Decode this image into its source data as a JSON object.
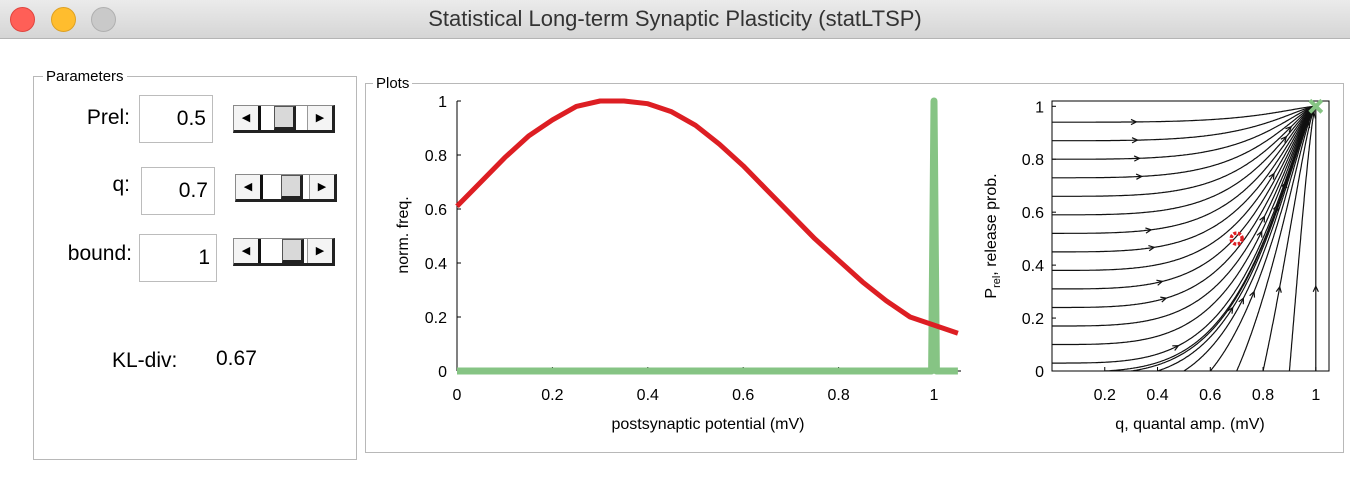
{
  "window": {
    "title": "Statistical Long-term Synaptic Plasticity (statLTSP)"
  },
  "parameters": {
    "title": "Parameters",
    "rows": [
      {
        "label": "Prel:",
        "value": "0.5",
        "level": 0.5
      },
      {
        "label": "q:",
        "value": "0.7",
        "level": 0.7
      },
      {
        "label": "bound:",
        "value": "1",
        "level": 0.8
      }
    ],
    "kl_label": "KL-div:",
    "kl_value": "0.67"
  },
  "plots": {
    "title": "Plots"
  },
  "colors": {
    "red_curve": "#dd1e23",
    "green_curve": "#86c484",
    "fixed_point": "#dd1e23",
    "target_marker": "#86c484"
  },
  "chart_data": [
    {
      "type": "line",
      "xlabel": "postsynaptic potential (mV)",
      "ylabel": "norm. freq.",
      "xlim": [
        0,
        1.05
      ],
      "ylim": [
        0,
        1
      ],
      "xticks": [
        "0",
        "0.2",
        "0.4",
        "0.6",
        "0.8",
        "1"
      ],
      "yticks": [
        "0",
        "0.2",
        "0.4",
        "0.6",
        "0.8",
        "1"
      ],
      "series": [
        {
          "color": "#dd1e23",
          "x": [
            0,
            0.05,
            0.1,
            0.15,
            0.2,
            0.25,
            0.3,
            0.35,
            0.4,
            0.45,
            0.5,
            0.55,
            0.6,
            0.65,
            0.7,
            0.75,
            0.8,
            0.85,
            0.9,
            0.95,
            1.0,
            1.05
          ],
          "y": [
            0.61,
            0.7,
            0.79,
            0.87,
            0.93,
            0.98,
            1.0,
            1.0,
            0.99,
            0.96,
            0.91,
            0.84,
            0.76,
            0.67,
            0.58,
            0.49,
            0.41,
            0.33,
            0.26,
            0.2,
            0.17,
            0.14
          ]
        },
        {
          "color": "#86c484",
          "x": [
            0,
            0.995,
            1.0,
            1.005,
            1.05
          ],
          "y": [
            0,
            0,
            1,
            0,
            0
          ]
        }
      ]
    },
    {
      "type": "scatter",
      "subtype": "phase-portrait",
      "xlabel": "q, quantal amp. (mV)",
      "ylabel": "P_rel, release prob.",
      "ylabel_main": "P",
      "ylabel_sub": "rel",
      "ylabel_rest": ", release prob.",
      "xlim": [
        0,
        1.05
      ],
      "ylim": [
        0,
        1.02
      ],
      "xticks": [
        "0.2",
        "0.4",
        "0.6",
        "0.8",
        "1"
      ],
      "yticks": [
        "0",
        "0.2",
        "0.4",
        "0.6",
        "0.8",
        "1"
      ],
      "fixed_point": {
        "x": 0.7,
        "y": 0.5
      },
      "target": {
        "x": 1.0,
        "y": 1.0
      }
    }
  ]
}
